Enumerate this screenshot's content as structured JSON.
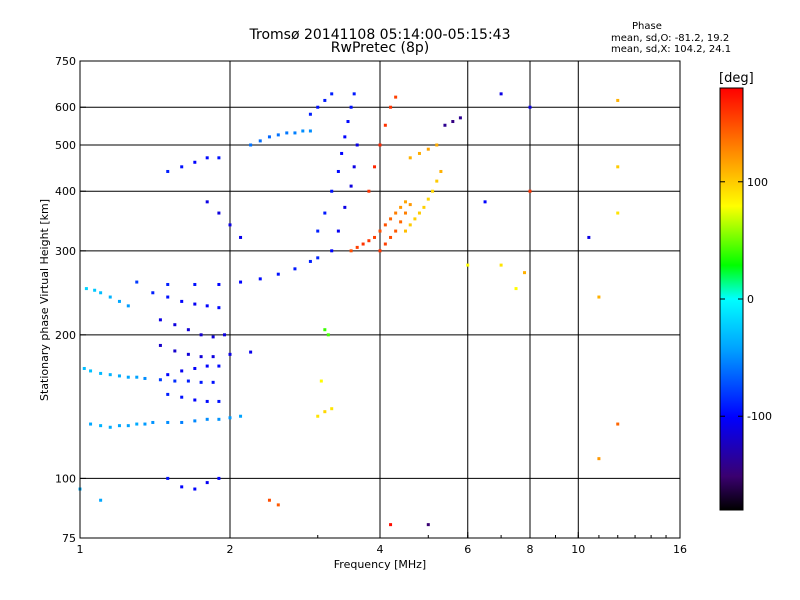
{
  "chart_data": {
    "type": "scatter",
    "title": "Tromsø 20141108 05:14:00-05:15:43",
    "subtitle": "RwPretec (8p)",
    "xlabel": "Frequency [MHz]",
    "ylabel": "Stationary phase Virtual Height [km]",
    "x_scale": "log",
    "y_scale": "log",
    "xlim": [
      1,
      16
    ],
    "ylim": [
      75,
      750
    ],
    "x_ticks": [
      1,
      2,
      4,
      6,
      8,
      10,
      16
    ],
    "y_ticks": [
      75,
      100,
      200,
      300,
      400,
      500,
      600,
      750
    ],
    "x_gridlines": [
      2,
      4,
      6,
      8,
      10
    ],
    "y_gridlines": [
      100,
      200,
      300,
      400,
      500,
      600
    ],
    "grid": true,
    "colorbar": {
      "label": "[deg]",
      "range": [
        -180,
        180
      ],
      "ticks": [
        100,
        0,
        -100
      ],
      "colormap": [
        "#000000",
        "#3a0070",
        "#0000ff",
        "#00a0ff",
        "#00ffff",
        "#00ff00",
        "#ffff00",
        "#ff8000",
        "#ff0000"
      ]
    },
    "stats": {
      "header": "Phase",
      "o_line": "mean, sd,O: -81.2, 19.2",
      "x_line": "mean, sd,X: 104.2, 24.1"
    },
    "series": [
      {
        "trace": "O",
        "points": [
          [
            1.05,
            130,
            -40
          ],
          [
            1.1,
            129,
            -35
          ],
          [
            1.15,
            128,
            -38
          ],
          [
            1.2,
            129,
            -40
          ],
          [
            1.25,
            129,
            -42
          ],
          [
            1.3,
            130,
            -38
          ],
          [
            1.35,
            130,
            -45
          ],
          [
            1.4,
            131,
            -48
          ],
          [
            1.5,
            131,
            -50
          ],
          [
            1.6,
            131,
            -55
          ],
          [
            1.7,
            132,
            -52
          ],
          [
            1.8,
            133,
            -50
          ],
          [
            1.9,
            133,
            -48
          ],
          [
            2.0,
            134,
            -45
          ],
          [
            2.1,
            135,
            -42
          ],
          [
            1.02,
            170,
            -30
          ],
          [
            1.05,
            168,
            -28
          ],
          [
            1.1,
            166,
            -32
          ],
          [
            1.15,
            165,
            -35
          ],
          [
            1.2,
            164,
            -38
          ],
          [
            1.25,
            163,
            -40
          ],
          [
            1.3,
            163,
            -42
          ],
          [
            1.35,
            162,
            -50
          ],
          [
            1.45,
            161,
            -80
          ],
          [
            1.55,
            160,
            -85
          ],
          [
            1.65,
            160,
            -90
          ],
          [
            1.75,
            159,
            -92
          ],
          [
            1.85,
            159,
            -95
          ],
          [
            1.03,
            250,
            -20
          ],
          [
            1.07,
            248,
            -25
          ],
          [
            1.1,
            245,
            -30
          ],
          [
            1.15,
            240,
            -35
          ],
          [
            1.2,
            235,
            -40
          ],
          [
            1.25,
            230,
            -45
          ],
          [
            1.4,
            245,
            -90
          ],
          [
            1.5,
            240,
            -95
          ],
          [
            1.6,
            235,
            -100
          ],
          [
            1.7,
            232,
            -105
          ],
          [
            1.8,
            230,
            -100
          ],
          [
            1.9,
            228,
            -98
          ],
          [
            1.3,
            258,
            -80
          ],
          [
            1.5,
            255,
            -90
          ],
          [
            1.7,
            255,
            -95
          ],
          [
            1.9,
            255,
            -100
          ],
          [
            2.1,
            258,
            -100
          ],
          [
            2.3,
            262,
            -98
          ],
          [
            2.5,
            268,
            -95
          ],
          [
            2.7,
            275,
            -92
          ],
          [
            2.9,
            285,
            -90
          ],
          [
            3.0,
            290,
            -88
          ],
          [
            1.45,
            215,
            -110
          ],
          [
            1.55,
            210,
            -112
          ],
          [
            1.65,
            205,
            -115
          ],
          [
            1.75,
            200,
            -118
          ],
          [
            1.85,
            198,
            -115
          ],
          [
            1.95,
            200,
            -112
          ],
          [
            1.45,
            190,
            -120
          ],
          [
            1.55,
            185,
            -118
          ],
          [
            1.65,
            182,
            -115
          ],
          [
            1.75,
            180,
            -115
          ],
          [
            1.85,
            180,
            -112
          ],
          [
            2.0,
            182,
            -110
          ],
          [
            2.2,
            184,
            -108
          ],
          [
            1.5,
            150,
            -90
          ],
          [
            1.6,
            148,
            -95
          ],
          [
            1.7,
            146,
            -100
          ],
          [
            1.8,
            145,
            -98
          ],
          [
            1.9,
            145,
            -95
          ],
          [
            1.5,
            165,
            -100
          ],
          [
            1.6,
            168,
            -105
          ],
          [
            1.7,
            170,
            -102
          ],
          [
            1.8,
            172,
            -100
          ],
          [
            1.9,
            172,
            -98
          ],
          [
            1.5,
            440,
            -90
          ],
          [
            1.6,
            450,
            -95
          ],
          [
            1.7,
            460,
            -100
          ],
          [
            1.8,
            470,
            -98
          ],
          [
            1.9,
            470,
            -95
          ],
          [
            1.8,
            380,
            -110
          ],
          [
            1.9,
            360,
            -112
          ],
          [
            2.0,
            340,
            -110
          ],
          [
            2.1,
            320,
            -108
          ],
          [
            2.2,
            500,
            -60
          ],
          [
            2.3,
            510,
            -62
          ],
          [
            2.4,
            520,
            -64
          ],
          [
            2.5,
            525,
            -60
          ],
          [
            2.6,
            530,
            -58
          ],
          [
            2.7,
            530,
            -55
          ],
          [
            2.8,
            535,
            -50
          ],
          [
            2.9,
            535,
            -50
          ],
          [
            3.0,
            330,
            -90
          ],
          [
            3.1,
            360,
            -92
          ],
          [
            3.2,
            400,
            -95
          ],
          [
            3.3,
            440,
            -98
          ],
          [
            3.35,
            480,
            -100
          ],
          [
            3.4,
            520,
            -100
          ],
          [
            3.45,
            560,
            -98
          ],
          [
            3.5,
            600,
            -95
          ],
          [
            3.55,
            640,
            -92
          ],
          [
            3.2,
            300,
            -100
          ],
          [
            3.3,
            330,
            -105
          ],
          [
            3.4,
            370,
            -110
          ],
          [
            3.5,
            410,
            -112
          ],
          [
            3.55,
            450,
            -110
          ],
          [
            3.6,
            500,
            -108
          ],
          [
            3.0,
            600,
            -95
          ],
          [
            3.1,
            620,
            -92
          ],
          [
            2.9,
            580,
            -90
          ],
          [
            3.2,
            640,
            -90
          ],
          [
            1.5,
            100,
            -95
          ],
          [
            1.6,
            96,
            -100
          ],
          [
            1.7,
            95,
            -100
          ],
          [
            1.8,
            98,
            -105
          ],
          [
            1.9,
            100,
            -100
          ],
          [
            1.1,
            90,
            -40
          ],
          [
            1.0,
            95,
            -35
          ]
        ]
      },
      {
        "trace": "X",
        "points": [
          [
            3.5,
            300,
            150
          ],
          [
            3.6,
            305,
            155
          ],
          [
            3.7,
            310,
            160
          ],
          [
            3.8,
            315,
            158
          ],
          [
            3.9,
            320,
            155
          ],
          [
            4.0,
            330,
            150
          ],
          [
            4.1,
            340,
            148
          ],
          [
            4.2,
            350,
            140
          ],
          [
            4.3,
            360,
            130
          ],
          [
            4.4,
            370,
            120
          ],
          [
            4.5,
            380,
            115
          ],
          [
            4.0,
            300,
            160
          ],
          [
            4.1,
            310,
            155
          ],
          [
            4.2,
            320,
            150
          ],
          [
            4.3,
            330,
            145
          ],
          [
            4.4,
            345,
            140
          ],
          [
            4.5,
            360,
            130
          ],
          [
            4.6,
            375,
            120
          ],
          [
            3.8,
            400,
            160
          ],
          [
            3.9,
            450,
            165
          ],
          [
            4.0,
            500,
            165
          ],
          [
            4.1,
            550,
            160
          ],
          [
            4.2,
            600,
            160
          ],
          [
            4.3,
            630,
            155
          ],
          [
            4.5,
            330,
            105
          ],
          [
            4.6,
            340,
            100
          ],
          [
            4.7,
            350,
            98
          ],
          [
            4.8,
            360,
            100
          ],
          [
            4.9,
            370,
            98
          ],
          [
            5.0,
            385,
            95
          ],
          [
            5.1,
            400,
            95
          ],
          [
            5.2,
            420,
            100
          ],
          [
            5.3,
            440,
            110
          ],
          [
            4.6,
            470,
            110
          ],
          [
            4.8,
            480,
            112
          ],
          [
            5.0,
            490,
            115
          ],
          [
            5.2,
            500,
            112
          ],
          [
            5.4,
            550,
            -140
          ],
          [
            5.6,
            560,
            -145
          ],
          [
            5.8,
            570,
            -140
          ],
          [
            3.1,
            205,
            40
          ],
          [
            3.15,
            200,
            42
          ],
          [
            3.05,
            160,
            80
          ],
          [
            3.2,
            140,
            90
          ],
          [
            3.1,
            138,
            95
          ],
          [
            3.0,
            135,
            90
          ],
          [
            2.4,
            90,
            150
          ],
          [
            2.5,
            88,
            145
          ],
          [
            4.2,
            80,
            175
          ],
          [
            5.0,
            80,
            -150
          ],
          [
            6.0,
            280,
            80
          ],
          [
            7.0,
            280,
            90
          ],
          [
            7.5,
            250,
            80
          ],
          [
            7.8,
            270,
            110
          ],
          [
            8.0,
            400,
            160
          ],
          [
            8.0,
            600,
            -110
          ],
          [
            6.5,
            380,
            -100
          ],
          [
            7.0,
            640,
            -110
          ],
          [
            10.5,
            320,
            -110
          ],
          [
            11.0,
            110,
            120
          ],
          [
            12.0,
            620,
            110
          ],
          [
            12.0,
            450,
            100
          ],
          [
            12.0,
            360,
            90
          ],
          [
            12.0,
            130,
            140
          ],
          [
            11.0,
            240,
            110
          ]
        ]
      }
    ]
  }
}
